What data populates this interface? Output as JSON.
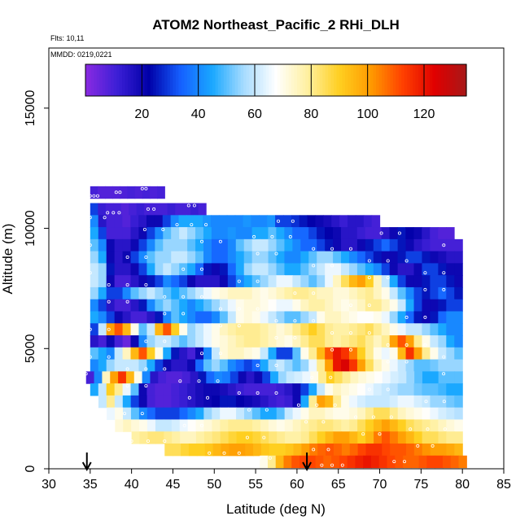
{
  "chart_data": {
    "type": "heatmap",
    "title": "ATOM2 Northeast_Pacific_2 RHi_DLH",
    "annotations": {
      "flights": "Flts: 10,11",
      "dates": "MMDD: 0219,0221"
    },
    "xlabel": "Latitude (deg N)",
    "ylabel": "Altitude (m)",
    "xlim": [
      30,
      85
    ],
    "ylim": [
      0,
      17500
    ],
    "x_ticks": [
      30,
      35,
      40,
      45,
      50,
      55,
      60,
      65,
      70,
      75,
      80,
      85
    ],
    "x_tick_labels": [
      "30",
      "35",
      "40",
      "45",
      "50",
      "55",
      "60",
      "65",
      "70",
      "75",
      "80",
      "85"
    ],
    "y_ticks": [
      0,
      5000,
      10000,
      15000
    ],
    "y_tick_labels": [
      "0",
      "5000",
      "10000",
      "15000"
    ],
    "colorbar": {
      "min": 0,
      "max": 135,
      "ticks": [
        20,
        40,
        60,
        80,
        100,
        120
      ],
      "tick_labels": [
        "20",
        "40",
        "60",
        "80",
        "100",
        "120"
      ],
      "colors": [
        "#8a2be2",
        "#3c1fd6",
        "#0000a8",
        "#1560ff",
        "#1aa8ff",
        "#a8dcff",
        "#ffffff",
        "#fff0a0",
        "#ffcf20",
        "#ff9a00",
        "#ff4000",
        "#e00000",
        "#a81818"
      ]
    },
    "lat_bins": [
      34.5,
      35,
      36,
      37,
      38,
      39,
      40,
      41,
      42,
      43,
      44,
      45,
      46,
      47,
      48,
      49,
      50,
      51,
      52,
      53,
      54,
      55,
      56,
      57,
      58,
      59,
      60,
      61,
      62,
      63,
      64,
      65,
      66,
      67,
      68,
      69,
      70,
      71,
      72,
      73,
      74,
      75,
      76,
      77,
      78,
      79,
      80,
      80.5
    ],
    "alt_layers": [
      {
        "alt": 11500,
        "lat_range": [
          35,
          44
        ],
        "values": [
          10,
          8,
          8,
          8,
          9,
          10,
          9,
          10,
          9,
          10
        ]
      },
      {
        "alt": 10800,
        "lat_range": [
          35,
          49
        ],
        "values": [
          30,
          12,
          10,
          10,
          8,
          10,
          12,
          10,
          10,
          10,
          12,
          10,
          10,
          12,
          10
        ]
      },
      {
        "alt": 10300,
        "lat_range": [
          35,
          70
        ],
        "values": [
          40,
          15,
          10,
          10,
          8,
          12,
          15,
          20,
          20,
          30,
          40,
          45,
          45,
          45,
          42,
          40,
          40,
          40,
          40,
          42,
          40,
          40,
          42,
          30,
          30,
          28,
          25,
          22,
          20,
          18,
          15,
          12,
          15,
          15,
          12,
          10
        ]
      },
      {
        "alt": 9800,
        "lat_range": [
          35,
          79
        ],
        "values": [
          45,
          30,
          10,
          10,
          10,
          15,
          20,
          30,
          40,
          50,
          55,
          60,
          55,
          50,
          45,
          40,
          40,
          42,
          40,
          40,
          45,
          45,
          50,
          45,
          40,
          35,
          35,
          30,
          25,
          22,
          20,
          15,
          15,
          12,
          10,
          10,
          15,
          20,
          25,
          22,
          20,
          15,
          10,
          8,
          8
        ]
      },
      {
        "alt": 9300,
        "lat_range": [
          35,
          80
        ],
        "values": [
          50,
          40,
          20,
          15,
          15,
          20,
          30,
          40,
          50,
          55,
          55,
          55,
          50,
          45,
          40,
          35,
          35,
          40,
          50,
          55,
          60,
          60,
          55,
          50,
          45,
          40,
          35,
          35,
          30,
          25,
          20,
          15,
          15,
          20,
          25,
          30,
          35,
          30,
          25,
          20,
          15,
          12,
          10,
          10,
          10,
          10
        ]
      },
      {
        "alt": 8800,
        "lat_range": [
          35,
          80
        ],
        "values": [
          55,
          45,
          20,
          15,
          20,
          30,
          40,
          50,
          55,
          55,
          60,
          60,
          55,
          50,
          40,
          35,
          35,
          40,
          45,
          50,
          55,
          55,
          50,
          45,
          40,
          40,
          45,
          50,
          55,
          55,
          50,
          45,
          40,
          35,
          30,
          25,
          20,
          20,
          25,
          30,
          30,
          25,
          20,
          18,
          15,
          15
        ]
      },
      {
        "alt": 8300,
        "lat_range": [
          35,
          80
        ],
        "values": [
          60,
          55,
          25,
          15,
          15,
          20,
          30,
          45,
          55,
          60,
          55,
          50,
          45,
          35,
          25,
          20,
          25,
          35,
          45,
          55,
          60,
          60,
          55,
          50,
          45,
          45,
          50,
          55,
          60,
          65,
          65,
          60,
          55,
          50,
          45,
          40,
          30,
          20,
          15,
          15,
          20,
          30,
          30,
          25,
          20,
          20
        ]
      },
      {
        "alt": 7800,
        "lat_range": [
          35,
          80
        ],
        "values": [
          60,
          55,
          20,
          10,
          10,
          15,
          20,
          25,
          30,
          40,
          35,
          30,
          20,
          15,
          15,
          15,
          20,
          30,
          40,
          45,
          50,
          55,
          60,
          65,
          65,
          60,
          55,
          50,
          55,
          65,
          75,
          85,
          95,
          100,
          90,
          75,
          60,
          45,
          30,
          20,
          20,
          25,
          30,
          30,
          25,
          20
        ]
      },
      {
        "alt": 7300,
        "lat_range": [
          35,
          80
        ],
        "values": [
          55,
          45,
          30,
          30,
          40,
          50,
          55,
          60,
          55,
          50,
          45,
          50,
          55,
          60,
          65,
          70,
          72,
          75,
          75,
          75,
          72,
          70,
          72,
          75,
          78,
          80,
          80,
          78,
          75,
          75,
          72,
          72,
          75,
          78,
          80,
          75,
          70,
          60,
          50,
          40,
          30,
          25,
          30,
          35,
          30,
          25
        ]
      },
      {
        "alt": 6800,
        "lat_range": [
          35,
          80
        ],
        "values": [
          40,
          30,
          15,
          10,
          10,
          15,
          25,
          40,
          50,
          55,
          50,
          45,
          40,
          45,
          50,
          55,
          60,
          65,
          70,
          72,
          72,
          70,
          68,
          65,
          65,
          70,
          75,
          78,
          78,
          75,
          72,
          70,
          72,
          75,
          80,
          80,
          75,
          70,
          60,
          45,
          30,
          20,
          20,
          25,
          30,
          30
        ]
      },
      {
        "alt": 6300,
        "lat_range": [
          35,
          80
        ],
        "values": [
          45,
          40,
          30,
          20,
          15,
          10,
          10,
          15,
          25,
          40,
          50,
          45,
          40,
          35,
          35,
          40,
          50,
          60,
          70,
          72,
          70,
          65,
          60,
          55,
          50,
          50,
          55,
          60,
          70,
          75,
          75,
          72,
          70,
          68,
          68,
          70,
          65,
          55,
          45,
          35,
          25,
          20,
          25,
          35,
          40,
          40
        ]
      },
      {
        "alt": 5800,
        "lat_range": [
          35,
          80
        ],
        "values": [
          30,
          60,
          100,
          110,
          95,
          70,
          50,
          60,
          95,
          110,
          90,
          70,
          55,
          60,
          65,
          70,
          75,
          78,
          80,
          80,
          80,
          78,
          75,
          72,
          75,
          80,
          85,
          90,
          85,
          80,
          78,
          78,
          80,
          82,
          85,
          80,
          75,
          70,
          65,
          60,
          60,
          55,
          50,
          45,
          40,
          40
        ]
      },
      {
        "alt": 5300,
        "lat_range": [
          35,
          80
        ],
        "values": [
          15,
          10,
          20,
          10,
          5,
          20,
          40,
          55,
          60,
          60,
          55,
          50,
          55,
          60,
          65,
          70,
          72,
          75,
          78,
          80,
          80,
          78,
          75,
          72,
          70,
          75,
          80,
          85,
          85,
          80,
          78,
          80,
          82,
          85,
          80,
          75,
          80,
          100,
          110,
          100,
          80,
          70,
          60,
          55,
          45,
          40
        ]
      },
      {
        "alt": 4800,
        "lat_range": [
          35,
          80
        ],
        "values": [
          50,
          45,
          40,
          60,
          75,
          95,
          110,
          90,
          70,
          45,
          25,
          15,
          10,
          20,
          40,
          60,
          72,
          75,
          75,
          72,
          70,
          60,
          45,
          30,
          30,
          50,
          70,
          80,
          95,
          110,
          120,
          115,
          105,
          90,
          80,
          70,
          65,
          70,
          95,
          115,
          100,
          80,
          70,
          60,
          55,
          50
        ]
      },
      {
        "alt": 4300,
        "lat_range": [
          35,
          80
        ],
        "values": [
          40,
          45,
          55,
          60,
          60,
          60,
          55,
          45,
          30,
          20,
          15,
          15,
          20,
          35,
          50,
          55,
          50,
          40,
          35,
          30,
          35,
          45,
          55,
          60,
          55,
          50,
          55,
          65,
          80,
          100,
          120,
          125,
          115,
          100,
          85,
          75,
          70,
          65,
          60,
          55,
          50,
          50,
          52,
          55,
          55,
          55
        ]
      },
      {
        "alt": 3800,
        "lat_range": [
          34.5,
          80
        ],
        "values": [
          10,
          40,
          75,
          100,
          115,
          95,
          70,
          40,
          15,
          10,
          8,
          8,
          10,
          15,
          25,
          35,
          40,
          38,
          30,
          20,
          15,
          20,
          30,
          45,
          55,
          60,
          62,
          65,
          70,
          80,
          90,
          85,
          80,
          75,
          72,
          70,
          68,
          65,
          62,
          60,
          55,
          50,
          45,
          45,
          50,
          50,
          50
        ]
      },
      {
        "alt": 3300,
        "lat_range": [
          35,
          80
        ],
        "values": [
          45,
          60,
          90,
          80,
          65,
          50,
          20,
          10,
          8,
          8,
          10,
          12,
          15,
          18,
          20,
          20,
          18,
          15,
          12,
          10,
          10,
          10,
          10,
          12,
          15,
          20,
          30,
          45,
          60,
          70,
          75,
          72,
          70,
          68,
          65,
          62,
          60,
          58,
          55,
          55,
          52,
          50,
          50,
          48,
          45,
          45
        ]
      },
      {
        "alt": 2800,
        "lat_range": [
          36,
          80
        ],
        "values": [
          60,
          80,
          60,
          45,
          30,
          20,
          10,
          8,
          8,
          10,
          12,
          15,
          18,
          20,
          22,
          25,
          25,
          22,
          20,
          18,
          15,
          12,
          10,
          12,
          20,
          45,
          80,
          100,
          95,
          80,
          70,
          65,
          62,
          60,
          60,
          60,
          62,
          65,
          65,
          62,
          60,
          55,
          55,
          52,
          50
        ]
      },
      {
        "alt": 2300,
        "lat_range": [
          37,
          80
        ],
        "values": [
          65,
          70,
          60,
          50,
          40,
          35,
          30,
          30,
          30,
          35,
          40,
          45,
          55,
          60,
          65,
          65,
          60,
          55,
          50,
          45,
          45,
          50,
          60,
          65,
          70,
          75,
          75,
          72,
          70,
          70,
          72,
          75,
          80,
          85,
          85,
          80,
          75,
          72,
          70,
          68,
          65,
          62,
          60,
          58
        ]
      },
      {
        "alt": 1800,
        "lat_range": [
          38,
          80
        ],
        "values": [
          72,
          75,
          72,
          70,
          65,
          60,
          60,
          62,
          65,
          68,
          70,
          72,
          75,
          78,
          80,
          80,
          80,
          78,
          75,
          72,
          70,
          72,
          75,
          78,
          80,
          82,
          82,
          80,
          78,
          80,
          85,
          90,
          95,
          100,
          95,
          90,
          85,
          82,
          80,
          78,
          75,
          72,
          70
        ]
      },
      {
        "alt": 1300,
        "lat_range": [
          40,
          80
        ],
        "values": [
          78,
          80,
          82,
          82,
          80,
          78,
          75,
          75,
          78,
          80,
          82,
          85,
          88,
          90,
          90,
          88,
          85,
          82,
          80,
          78,
          78,
          80,
          85,
          90,
          95,
          100,
          100,
          95,
          90,
          95,
          105,
          110,
          105,
          100,
          95,
          90,
          85,
          85,
          82,
          80,
          80
        ]
      },
      {
        "alt": 800,
        "lat_range": [
          44,
          80
        ],
        "values": [
          85,
          85,
          88,
          90,
          90,
          92,
          95,
          98,
          100,
          100,
          98,
          95,
          92,
          90,
          90,
          92,
          95,
          100,
          105,
          108,
          110,
          108,
          105,
          108,
          112,
          115,
          115,
          112,
          110,
          110,
          108,
          105,
          102,
          100,
          100,
          98,
          95
        ]
      },
      {
        "alt": 300,
        "lat_range": [
          55.5,
          80.5
        ],
        "values": [
          70,
          80,
          95,
          105,
          110,
          112,
          112,
          110,
          108,
          110,
          112,
          115,
          118,
          120,
          118,
          115,
          112,
          110,
          108,
          108,
          110,
          112,
          112,
          110,
          108,
          105
        ]
      }
    ],
    "flight_track_markers": "small white open circles along aircraft path",
    "arrows_at_latitude": [
      34.6,
      61.2
    ]
  }
}
